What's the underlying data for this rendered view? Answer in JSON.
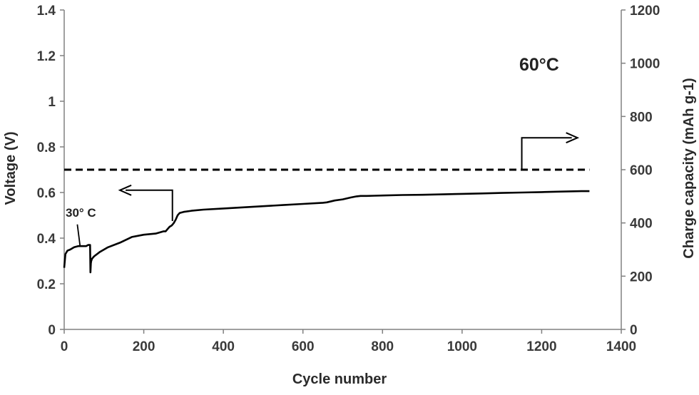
{
  "chart_data": {
    "type": "line",
    "title": "",
    "xlabel": "Cycle number",
    "ylabel": "Voltage (V)",
    "y2label": "Charge capacity (mAh g-1)",
    "xlim": [
      0,
      1400
    ],
    "ylim": [
      0,
      1.4
    ],
    "y2lim": [
      0,
      1200
    ],
    "x_ticks": [
      0,
      200,
      400,
      600,
      800,
      1000,
      1200,
      1400
    ],
    "y_ticks": [
      0,
      0.2,
      0.4,
      0.6,
      0.8,
      1,
      1.2,
      1.4
    ],
    "y2_ticks": [
      0,
      200,
      400,
      600,
      800,
      1000,
      1200
    ],
    "x_tick_labels": [
      "0",
      "200",
      "400",
      "600",
      "800",
      "1000",
      "1200",
      "1400"
    ],
    "y_tick_labels": [
      "0",
      "0.2",
      "0.4",
      "0.6",
      "0.8",
      "1",
      "1.2",
      "1.4"
    ],
    "y2_tick_labels": [
      "0",
      "200",
      "400",
      "600",
      "800",
      "1000",
      "1200"
    ],
    "grid": false,
    "series": [
      {
        "axis": "left",
        "style": "solid",
        "x": [
          0,
          3,
          8,
          15,
          25,
          35,
          45,
          55,
          60,
          62,
          65,
          66,
          67,
          68,
          70,
          75,
          90,
          110,
          140,
          170,
          200,
          230,
          240,
          250,
          255,
          260,
          265,
          270,
          275,
          280,
          285,
          290,
          300,
          320,
          350,
          400,
          450,
          500,
          550,
          600,
          650,
          660,
          680,
          700,
          720,
          735,
          745,
          760,
          780,
          800,
          850,
          900,
          950,
          1000,
          1050,
          1100,
          1150,
          1200,
          1250,
          1300,
          1320
        ],
        "y": [
          0.27,
          0.33,
          0.345,
          0.35,
          0.36,
          0.365,
          0.365,
          0.365,
          0.37,
          0.37,
          0.37,
          0.25,
          0.29,
          0.3,
          0.31,
          0.32,
          0.34,
          0.36,
          0.38,
          0.405,
          0.415,
          0.42,
          0.425,
          0.43,
          0.43,
          0.44,
          0.45,
          0.455,
          0.465,
          0.48,
          0.5,
          0.51,
          0.515,
          0.52,
          0.525,
          0.53,
          0.535,
          0.54,
          0.545,
          0.55,
          0.555,
          0.557,
          0.565,
          0.57,
          0.578,
          0.583,
          0.585,
          0.585,
          0.586,
          0.587,
          0.589,
          0.59,
          0.592,
          0.594,
          0.596,
          0.598,
          0.6,
          0.602,
          0.604,
          0.606,
          0.606
        ]
      },
      {
        "axis": "right",
        "style": "dashed",
        "x": [
          0,
          1320
        ],
        "y": [
          600,
          600
        ]
      }
    ],
    "annotations": [
      {
        "text": "60°C"
      },
      {
        "text": "30° C"
      }
    ]
  }
}
